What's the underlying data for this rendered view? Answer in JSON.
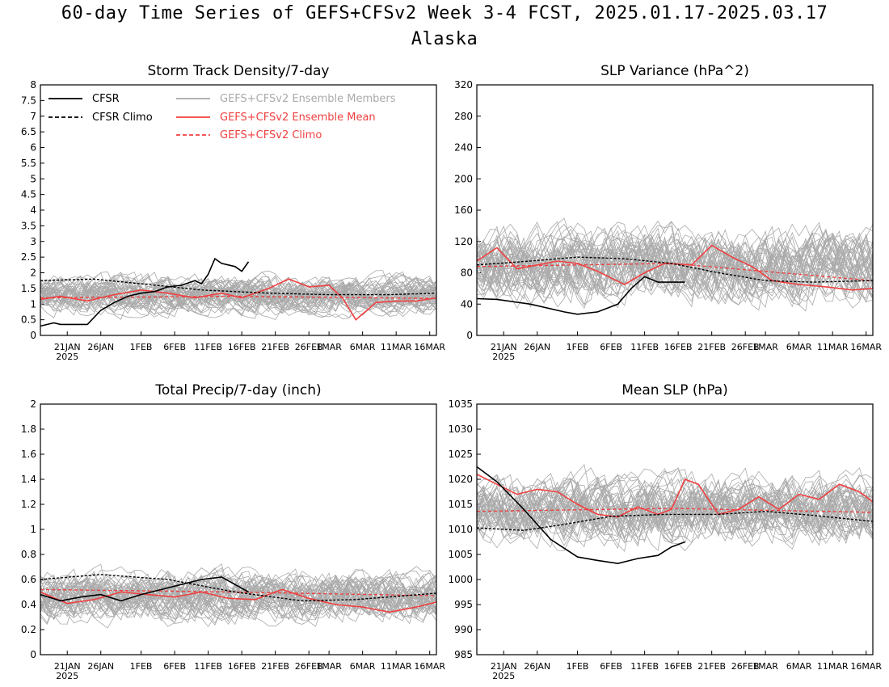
{
  "figure": {
    "title_line1": "60-day Time Series of GEFS+CFSv2 Week 3-4 FCST, 2025.01.17-2025.03.17",
    "title_line2": "Alaska"
  },
  "x_axis": {
    "tick_labels": [
      "21JAN",
      "26JAN",
      "1FEB",
      "6FEB",
      "11FEB",
      "16FEB",
      "21FEB",
      "26FEB",
      "1MAR",
      "6MAR",
      "11MAR",
      "16MAR"
    ],
    "tick_dates": [
      "2025-01-21",
      "2025-01-26",
      "2025-02-01",
      "2025-02-06",
      "2025-02-11",
      "2025-02-16",
      "2025-02-21",
      "2025-02-26",
      "2025-03-01",
      "2025-03-06",
      "2025-03-11",
      "2025-03-16"
    ],
    "year_label": "2025",
    "range": [
      "2025-01-17",
      "2025-03-17"
    ]
  },
  "legend": {
    "cfsr": "CFSR",
    "cfsr_climo": "CFSR Climo",
    "members": "GEFS+CFSv2 Ensemble Members",
    "mean": "GEFS+CFSv2 Ensemble Mean",
    "climo": "GEFS+CFSv2 Climo"
  },
  "colors": {
    "cfsr": "#000000",
    "members": "#aaaaaa",
    "mean": "#f04040"
  },
  "chart_data": [
    {
      "type": "line",
      "title": "Storm Track Density/7-day",
      "ylim": [
        0,
        8
      ],
      "yticks": [
        "0",
        "0.5",
        "1",
        "1.5",
        "2",
        "2.5",
        "3",
        "3.5",
        "4",
        "4.5",
        "5",
        "5.5",
        "6",
        "6.5",
        "7",
        "7.5",
        "8"
      ],
      "members_spread": {
        "center": 1.3,
        "amplitude": 0.9
      },
      "series": [
        {
          "name": "CFSR",
          "style": "solid-black",
          "x": [
            "2025-01-17",
            "2025-01-19",
            "2025-01-20",
            "2025-01-22",
            "2025-01-24",
            "2025-01-26",
            "2025-01-28",
            "2025-01-30",
            "2025-02-01",
            "2025-02-03",
            "2025-02-05",
            "2025-02-07",
            "2025-02-09",
            "2025-02-10",
            "2025-02-11",
            "2025-02-12",
            "2025-02-13",
            "2025-02-14",
            "2025-02-15",
            "2025-02-16",
            "2025-02-17"
          ],
          "values": [
            0.3,
            0.4,
            0.35,
            0.35,
            0.35,
            0.8,
            1.05,
            1.25,
            1.35,
            1.4,
            1.55,
            1.6,
            1.75,
            1.65,
            1.95,
            2.45,
            2.3,
            2.25,
            2.2,
            2.05,
            2.35
          ]
        },
        {
          "name": "CFSR Climo",
          "style": "dashed-black",
          "x": [
            "2025-01-17",
            "2025-01-25",
            "2025-02-01",
            "2025-02-10",
            "2025-02-20",
            "2025-03-01",
            "2025-03-10",
            "2025-03-17"
          ],
          "values": [
            1.75,
            1.8,
            1.65,
            1.45,
            1.35,
            1.3,
            1.3,
            1.35
          ]
        },
        {
          "name": "GEFS+CFSv2 Ensemble Mean",
          "style": "solid-red",
          "x": [
            "2025-01-17",
            "2025-01-20",
            "2025-01-24",
            "2025-01-28",
            "2025-02-01",
            "2025-02-05",
            "2025-02-09",
            "2025-02-13",
            "2025-02-16",
            "2025-02-20",
            "2025-02-23",
            "2025-02-26",
            "2025-03-01",
            "2025-03-03",
            "2025-03-05",
            "2025-03-08",
            "2025-03-11",
            "2025-03-14",
            "2025-03-17"
          ],
          "values": [
            1.15,
            1.25,
            1.1,
            1.3,
            1.45,
            1.35,
            1.2,
            1.35,
            1.2,
            1.5,
            1.8,
            1.55,
            1.6,
            1.2,
            0.5,
            1.05,
            1.1,
            1.1,
            1.2
          ]
        },
        {
          "name": "GEFS+CFSv2 Climo",
          "style": "dashed-red",
          "x": [
            "2025-01-17",
            "2025-02-15",
            "2025-03-17"
          ],
          "values": [
            1.2,
            1.25,
            1.18
          ]
        }
      ]
    },
    {
      "type": "line",
      "title": "SLP Variance (hPa^2)",
      "ylim": [
        0,
        320
      ],
      "yticks": [
        "0",
        "40",
        "80",
        "120",
        "160",
        "200",
        "240",
        "280",
        "320"
      ],
      "members_spread": {
        "center": 90,
        "amplitude": 70
      },
      "series": [
        {
          "name": "CFSR",
          "style": "solid-black",
          "x": [
            "2025-01-17",
            "2025-01-20",
            "2025-01-25",
            "2025-01-30",
            "2025-02-01",
            "2025-02-04",
            "2025-02-07",
            "2025-02-09",
            "2025-02-11",
            "2025-02-13",
            "2025-02-15",
            "2025-02-17"
          ],
          "values": [
            47,
            46,
            40,
            30,
            27,
            30,
            40,
            60,
            75,
            68,
            68,
            68
          ]
        },
        {
          "name": "CFSR Climo",
          "style": "dashed-black",
          "x": [
            "2025-01-17",
            "2025-01-25",
            "2025-02-01",
            "2025-02-08",
            "2025-02-15",
            "2025-02-22",
            "2025-03-01",
            "2025-03-08",
            "2025-03-17"
          ],
          "values": [
            90,
            95,
            100,
            98,
            92,
            80,
            70,
            68,
            70
          ]
        },
        {
          "name": "GEFS+CFSv2 Ensemble Mean",
          "style": "solid-red",
          "x": [
            "2025-01-17",
            "2025-01-20",
            "2025-01-23",
            "2025-01-26",
            "2025-01-29",
            "2025-02-01",
            "2025-02-04",
            "2025-02-08",
            "2025-02-11",
            "2025-02-14",
            "2025-02-18",
            "2025-02-21",
            "2025-02-24",
            "2025-02-27",
            "2025-03-02",
            "2025-03-06",
            "2025-03-10",
            "2025-03-14",
            "2025-03-17"
          ],
          "values": [
            95,
            112,
            85,
            90,
            95,
            92,
            82,
            65,
            80,
            92,
            90,
            115,
            100,
            88,
            70,
            65,
            62,
            58,
            60
          ]
        },
        {
          "name": "GEFS+CFSv2 Climo",
          "style": "dashed-red",
          "x": [
            "2025-01-17",
            "2025-02-15",
            "2025-03-17"
          ],
          "values": [
            88,
            92,
            70
          ]
        }
      ]
    },
    {
      "type": "line",
      "title": "Total Precip/7-day (inch)",
      "ylim": [
        0,
        2
      ],
      "yticks": [
        "0",
        "0.2",
        "0.4",
        "0.6",
        "0.8",
        "1",
        "1.2",
        "1.4",
        "1.6",
        "1.8",
        "2"
      ],
      "members_spread": {
        "center": 0.46,
        "amplitude": 0.3
      },
      "series": [
        {
          "name": "CFSR",
          "style": "solid-black",
          "x": [
            "2025-01-17",
            "2025-01-20",
            "2025-01-23",
            "2025-01-26",
            "2025-01-29",
            "2025-02-01",
            "2025-02-04",
            "2025-02-07",
            "2025-02-10",
            "2025-02-13",
            "2025-02-17"
          ],
          "values": [
            0.48,
            0.43,
            0.46,
            0.48,
            0.43,
            0.48,
            0.52,
            0.56,
            0.6,
            0.62,
            0.5
          ]
        },
        {
          "name": "CFSR Climo",
          "style": "dashed-black",
          "x": [
            "2025-01-17",
            "2025-01-26",
            "2025-02-05",
            "2025-02-15",
            "2025-02-25",
            "2025-03-05",
            "2025-03-17"
          ],
          "values": [
            0.6,
            0.64,
            0.6,
            0.5,
            0.43,
            0.44,
            0.49
          ]
        },
        {
          "name": "GEFS+CFSv2 Ensemble Mean",
          "style": "solid-red",
          "x": [
            "2025-01-17",
            "2025-01-21",
            "2025-01-25",
            "2025-01-29",
            "2025-02-02",
            "2025-02-06",
            "2025-02-10",
            "2025-02-14",
            "2025-02-18",
            "2025-02-22",
            "2025-02-26",
            "2025-03-02",
            "2025-03-06",
            "2025-03-10",
            "2025-03-14",
            "2025-03-17"
          ],
          "values": [
            0.5,
            0.41,
            0.44,
            0.5,
            0.48,
            0.46,
            0.5,
            0.45,
            0.44,
            0.52,
            0.45,
            0.4,
            0.38,
            0.34,
            0.38,
            0.42
          ]
        },
        {
          "name": "GEFS+CFSv2 Climo",
          "style": "dashed-red",
          "x": [
            "2025-01-17",
            "2025-02-15",
            "2025-03-17"
          ],
          "values": [
            0.52,
            0.5,
            0.47
          ]
        }
      ]
    },
    {
      "type": "line",
      "title": "Mean SLP (hPa)",
      "ylim": [
        985,
        1035
      ],
      "yticks": [
        "985",
        "990",
        "995",
        "1000",
        "1005",
        "1010",
        "1015",
        "1020",
        "1025",
        "1030",
        "1035"
      ],
      "members_spread": {
        "center": 1014,
        "amplitude": 10
      },
      "series": [
        {
          "name": "CFSR",
          "style": "solid-black",
          "x": [
            "2025-01-17",
            "2025-01-20",
            "2025-01-24",
            "2025-01-28",
            "2025-02-01",
            "2025-02-04",
            "2025-02-07",
            "2025-02-10",
            "2025-02-13",
            "2025-02-15",
            "2025-02-17"
          ],
          "values": [
            1022.5,
            1019.5,
            1014,
            1008,
            1004.5,
            1003.8,
            1003.2,
            1004.2,
            1004.8,
            1006.5,
            1007.5
          ]
        },
        {
          "name": "CFSR Climo",
          "style": "dashed-black",
          "x": [
            "2025-01-17",
            "2025-01-24",
            "2025-01-30",
            "2025-02-06",
            "2025-02-14",
            "2025-02-22",
            "2025-03-01",
            "2025-03-08",
            "2025-03-17"
          ],
          "values": [
            1010.3,
            1009.8,
            1011,
            1012.6,
            1013,
            1013,
            1013.6,
            1012.8,
            1011.6
          ]
        },
        {
          "name": "GEFS+CFSv2 Ensemble Mean",
          "style": "solid-red",
          "x": [
            "2025-01-17",
            "2025-01-20",
            "2025-01-23",
            "2025-01-26",
            "2025-01-29",
            "2025-02-01",
            "2025-02-04",
            "2025-02-07",
            "2025-02-10",
            "2025-02-13",
            "2025-02-15",
            "2025-02-17",
            "2025-02-19",
            "2025-02-22",
            "2025-02-25",
            "2025-02-28",
            "2025-03-03",
            "2025-03-06",
            "2025-03-09",
            "2025-03-12",
            "2025-03-15",
            "2025-03-17"
          ],
          "values": [
            1021,
            1019,
            1017,
            1018,
            1017.5,
            1015,
            1013,
            1012.5,
            1014.5,
            1013,
            1014,
            1020,
            1019,
            1013,
            1014,
            1016.5,
            1014,
            1017,
            1016,
            1019,
            1017.5,
            1015.5
          ]
        },
        {
          "name": "GEFS+CFSv2 Climo",
          "style": "dashed-red",
          "x": [
            "2025-01-17",
            "2025-02-15",
            "2025-03-17"
          ],
          "values": [
            1013.6,
            1014.2,
            1013.4
          ]
        }
      ]
    }
  ]
}
